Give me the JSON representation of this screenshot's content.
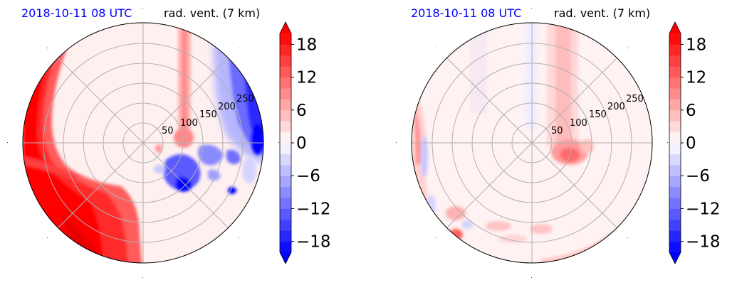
{
  "panels": [
    {
      "date_label": "2018-10-11 08 UTC",
      "title": "rad. vent. (7 km)",
      "ring_labels": [
        "50",
        "100",
        "150",
        "200",
        "250"
      ]
    },
    {
      "date_label": "2018-10-11 08 UTC",
      "title": "rad. vent. (7 km)",
      "ring_labels": [
        "50",
        "100",
        "150",
        "200",
        "250"
      ]
    }
  ],
  "colorbar": {
    "ticks": [
      "18",
      "12",
      "6",
      "0",
      "−6",
      "−12",
      "−18"
    ],
    "tick_values": [
      18,
      12,
      6,
      0,
      -6,
      -12,
      -18
    ],
    "vmin": -20,
    "vmax": 20,
    "levels": 20,
    "colormap": "bwr",
    "extend": "both"
  },
  "chart_data": [
    {
      "type": "heatmap",
      "projection": "polar",
      "title": "rad. vent. (7 km)",
      "annotation": "2018-10-11 08 UTC",
      "r_ticks": [
        50,
        100,
        150,
        200,
        250
      ],
      "grid": true,
      "colorbar_range": [
        -20,
        20
      ],
      "features": [
        {
          "sign": "positive",
          "strength": "strong",
          "where": "west and southwest half"
        },
        {
          "sign": "positive",
          "strength": "moderate",
          "where": "narrow band extending north from center"
        },
        {
          "sign": "negative",
          "strength": "strong",
          "where": "east and northeast, southeast of center"
        }
      ]
    },
    {
      "type": "heatmap",
      "projection": "polar",
      "title": "rad. vent. (7 km)",
      "annotation": "2018-10-11 08 UTC",
      "r_ticks": [
        50,
        100,
        150,
        200,
        250
      ],
      "grid": true,
      "colorbar_range": [
        -20,
        20
      ],
      "features": [
        {
          "sign": "positive",
          "strength": "weak",
          "where": "band extending north from center"
        },
        {
          "sign": "positive",
          "strength": "moderate",
          "where": "just southeast of center"
        },
        {
          "sign": "positive",
          "strength": "weak",
          "where": "southwest rim and south patches"
        },
        {
          "sign": "negative",
          "strength": "weak",
          "where": "scattered near west rim"
        }
      ]
    }
  ]
}
